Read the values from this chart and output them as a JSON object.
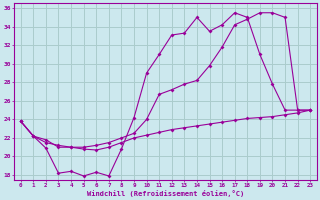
{
  "xlabel": "Windchill (Refroidissement éolien,°C)",
  "bg_color": "#cce8ee",
  "grid_color": "#aacccc",
  "line_color": "#990099",
  "xlim": [
    -0.5,
    23.5
  ],
  "ylim": [
    17.5,
    36.5
  ],
  "xticks": [
    0,
    1,
    2,
    3,
    4,
    5,
    6,
    7,
    8,
    9,
    10,
    11,
    12,
    13,
    14,
    15,
    16,
    17,
    18,
    19,
    20,
    21,
    22,
    23
  ],
  "yticks": [
    18,
    20,
    22,
    24,
    26,
    28,
    30,
    32,
    34,
    36
  ],
  "line1_x": [
    0,
    1,
    2,
    3,
    4,
    5,
    6,
    7,
    8,
    9,
    10,
    11,
    12,
    13,
    14,
    15,
    16,
    17,
    18,
    19,
    20,
    21,
    22,
    23
  ],
  "line1_y": [
    23.8,
    22.2,
    20.9,
    18.2,
    18.4,
    17.9,
    18.3,
    17.9,
    20.8,
    24.2,
    29.0,
    31.0,
    33.1,
    33.3,
    35.0,
    33.5,
    34.2,
    35.5,
    35.0,
    31.0,
    27.8,
    25.0,
    25.0,
    25.0
  ],
  "line2_x": [
    0,
    1,
    2,
    3,
    4,
    5,
    6,
    7,
    8,
    9,
    10,
    11,
    12,
    13,
    14,
    15,
    16,
    17,
    18,
    19,
    20,
    21,
    22,
    23
  ],
  "line2_y": [
    23.8,
    22.2,
    21.5,
    21.2,
    21.0,
    20.8,
    20.7,
    21.0,
    21.5,
    22.0,
    22.3,
    22.6,
    22.9,
    23.1,
    23.3,
    23.5,
    23.7,
    23.9,
    24.1,
    24.2,
    24.3,
    24.5,
    24.7,
    25.0
  ],
  "line3_x": [
    0,
    1,
    2,
    3,
    4,
    5,
    6,
    7,
    8,
    9,
    10,
    11,
    12,
    13,
    14,
    15,
    16,
    17,
    18,
    19,
    20,
    21,
    22,
    23
  ],
  "line3_y": [
    23.8,
    22.2,
    21.8,
    21.0,
    21.0,
    21.0,
    21.2,
    21.5,
    22.0,
    22.5,
    24.0,
    26.7,
    27.2,
    27.8,
    28.2,
    29.8,
    31.8,
    34.2,
    34.8,
    35.5,
    35.5,
    35.0,
    25.0,
    25.0
  ]
}
